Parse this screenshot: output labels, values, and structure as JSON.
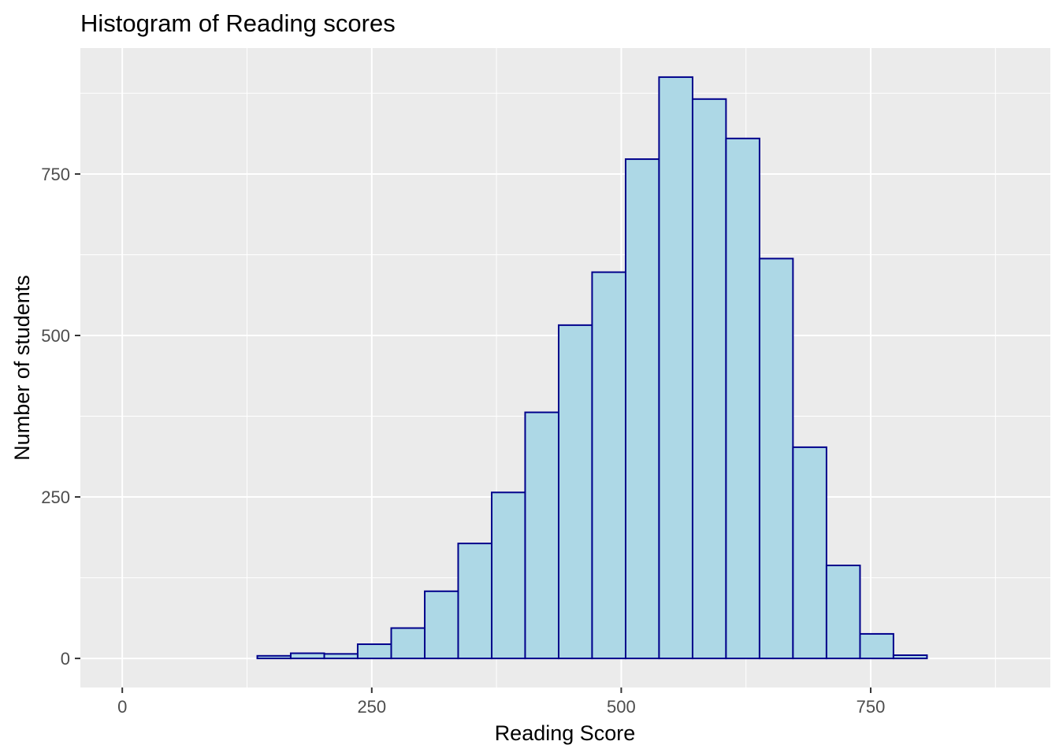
{
  "chart_data": {
    "type": "bar",
    "title": "Histogram of Reading scores",
    "xlabel": "Reading Score",
    "ylabel": "Number of students",
    "xlim": [
      -42,
      930
    ],
    "ylim": [
      -45,
      945
    ],
    "x_ticks": [
      0,
      250,
      500,
      750
    ],
    "y_ticks": [
      0,
      250,
      500,
      750
    ],
    "grid": true,
    "background": "#EBEBEB",
    "grid_color": "#FFFFFF",
    "bar_fill": "#ADD8E6",
    "bar_outline": "#00008B",
    "bins": [
      {
        "x_start": 135.3,
        "x_end": 168.8,
        "count": 4
      },
      {
        "x_start": 168.8,
        "x_end": 202.4,
        "count": 8
      },
      {
        "x_start": 202.4,
        "x_end": 235.9,
        "count": 7
      },
      {
        "x_start": 235.9,
        "x_end": 269.5,
        "count": 22
      },
      {
        "x_start": 269.5,
        "x_end": 303.1,
        "count": 47
      },
      {
        "x_start": 303.1,
        "x_end": 336.6,
        "count": 104
      },
      {
        "x_start": 336.6,
        "x_end": 370.2,
        "count": 178
      },
      {
        "x_start": 370.2,
        "x_end": 403.7,
        "count": 257
      },
      {
        "x_start": 403.7,
        "x_end": 437.3,
        "count": 381
      },
      {
        "x_start": 437.3,
        "x_end": 470.8,
        "count": 516
      },
      {
        "x_start": 470.8,
        "x_end": 504.4,
        "count": 598
      },
      {
        "x_start": 504.4,
        "x_end": 537.9,
        "count": 773
      },
      {
        "x_start": 537.9,
        "x_end": 571.5,
        "count": 900
      },
      {
        "x_start": 571.5,
        "x_end": 605.0,
        "count": 866
      },
      {
        "x_start": 605.0,
        "x_end": 638.6,
        "count": 805
      },
      {
        "x_start": 638.6,
        "x_end": 672.1,
        "count": 619
      },
      {
        "x_start": 672.1,
        "x_end": 705.7,
        "count": 327
      },
      {
        "x_start": 705.7,
        "x_end": 739.3,
        "count": 144
      },
      {
        "x_start": 739.3,
        "x_end": 772.8,
        "count": 38
      },
      {
        "x_start": 772.8,
        "x_end": 806.4,
        "count": 5
      }
    ]
  }
}
